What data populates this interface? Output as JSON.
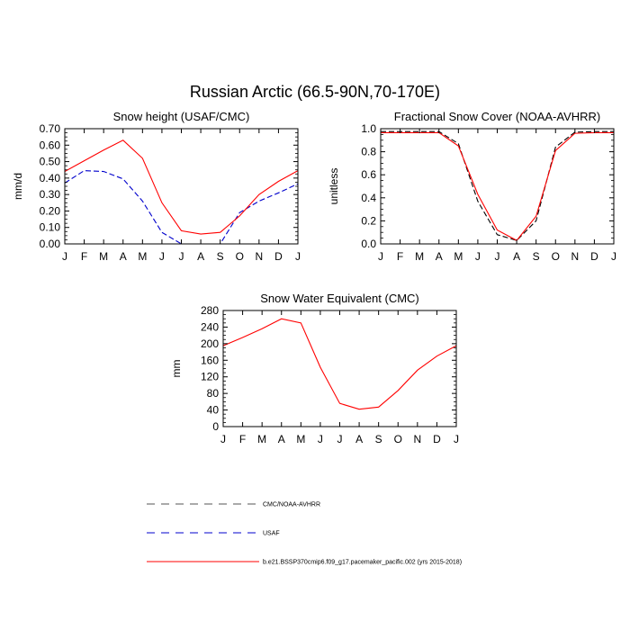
{
  "figure": {
    "title": "Russian Arctic (66.5-90N,70-170E)"
  },
  "legend": {
    "entries": [
      {
        "label": "CMC/NOAA-AVHRR",
        "color": "#555555",
        "dash": "dashed"
      },
      {
        "label": "USAF",
        "color": "#0000cc",
        "dash": "dashed"
      },
      {
        "label": "b.e21.BSSP370cmip6.f09_g17.pacemaker_pacific.002 (yrs 2015-2018)",
        "color": "#ff0000",
        "dash": "solid"
      }
    ]
  },
  "chart_data": [
    {
      "type": "line",
      "title": "Snow height (USAF/CMC)",
      "xlabel": "",
      "ylabel": "mm/d",
      "categories": [
        "J",
        "F",
        "M",
        "A",
        "M",
        "J",
        "J",
        "A",
        "S",
        "O",
        "N",
        "D",
        "J"
      ],
      "ylim": [
        0,
        0.7
      ],
      "yticks": [
        "0.00",
        "0.10",
        "0.20",
        "0.30",
        "0.40",
        "0.50",
        "0.60",
        "0.70"
      ],
      "series": [
        {
          "name": "CMC/NOAA-AVHRR",
          "color": "#555555",
          "dash": "dashed",
          "values": [
            0,
            0,
            0,
            0,
            0,
            0,
            0,
            0,
            0,
            0,
            0,
            0,
            0
          ]
        },
        {
          "name": "USAF",
          "color": "#0000cc",
          "dash": "dashed",
          "values": [
            0.37,
            0.445,
            0.44,
            0.395,
            0.26,
            0.07,
            0.0,
            0.0,
            0.0,
            0.19,
            0.26,
            0.31,
            0.365
          ]
        },
        {
          "name": "b.e21.BSSP370cmip6.f09_g17.pacemaker_pacific.002 (yrs 2015-2018)",
          "color": "#ff0000",
          "dash": "solid",
          "values": [
            0.44,
            0.505,
            0.57,
            0.63,
            0.52,
            0.25,
            0.08,
            0.06,
            0.07,
            0.17,
            0.3,
            0.38,
            0.445
          ]
        }
      ]
    },
    {
      "type": "line",
      "title": "Fractional Snow Cover (NOAA-AVHRR)",
      "xlabel": "",
      "ylabel": "unitless",
      "categories": [
        "J",
        "F",
        "M",
        "A",
        "M",
        "J",
        "J",
        "A",
        "S",
        "O",
        "N",
        "D",
        "J"
      ],
      "ylim": [
        0,
        1.0
      ],
      "yticks": [
        "0.0",
        "0.2",
        "0.4",
        "0.6",
        "0.8",
        "1.0"
      ],
      "series": [
        {
          "name": "CMC/NOAA-AVHRR",
          "color": "#000000",
          "dash": "dashed",
          "values": [
            0.975,
            0.975,
            0.975,
            0.975,
            0.87,
            0.37,
            0.08,
            0.03,
            0.2,
            0.84,
            0.97,
            0.975,
            0.975
          ]
        },
        {
          "name": "b.e21.BSSP370cmip6.f09_g17.pacemaker_pacific.002 (yrs 2015-2018)",
          "color": "#ff0000",
          "dash": "solid",
          "values": [
            0.965,
            0.965,
            0.965,
            0.965,
            0.85,
            0.43,
            0.12,
            0.03,
            0.24,
            0.81,
            0.96,
            0.965,
            0.965
          ]
        }
      ]
    },
    {
      "type": "line",
      "title": "Snow Water Equivalent (CMC)",
      "xlabel": "",
      "ylabel": "mm",
      "categories": [
        "J",
        "F",
        "M",
        "A",
        "M",
        "J",
        "J",
        "A",
        "S",
        "O",
        "N",
        "D",
        "J"
      ],
      "ylim": [
        0,
        280
      ],
      "yticks": [
        "0",
        "40",
        "80",
        "120",
        "160",
        "200",
        "240",
        "280"
      ],
      "series": [
        {
          "name": "CMC/NOAA-AVHRR",
          "color": "#000000",
          "dash": "dashed",
          "values": [
            0,
            0,
            0,
            0,
            0,
            0,
            0,
            0,
            0,
            0,
            0,
            0,
            0
          ]
        },
        {
          "name": "b.e21.BSSP370cmip6.f09_g17.pacemaker_pacific.002 (yrs 2015-2018)",
          "color": "#ff0000",
          "dash": "solid",
          "values": [
            195,
            215,
            236,
            260,
            250,
            143,
            56,
            42,
            47,
            87,
            136,
            170,
            195
          ]
        }
      ]
    }
  ]
}
